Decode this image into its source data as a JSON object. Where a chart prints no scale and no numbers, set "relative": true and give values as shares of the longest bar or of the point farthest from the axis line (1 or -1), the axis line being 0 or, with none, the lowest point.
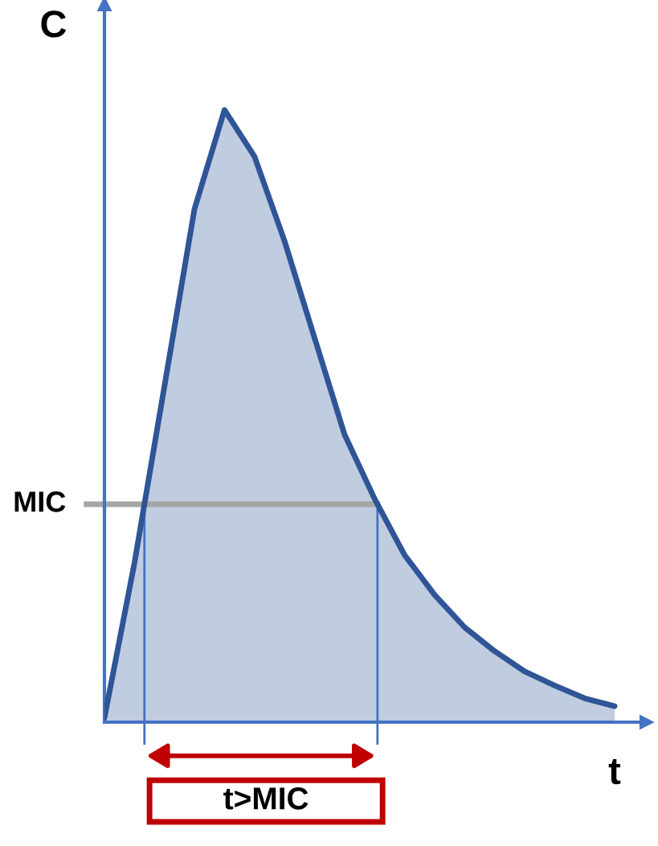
{
  "chart_data": {
    "type": "area",
    "relative": true,
    "xlabel": "t",
    "ylabel": "C",
    "categories": [
      null,
      null,
      null,
      null,
      null,
      null,
      null,
      null,
      null,
      null,
      null,
      null,
      null,
      null,
      null,
      null,
      null,
      null
    ],
    "series": [
      {
        "color": "#2f5597",
        "values": [
          0.007,
          0.26,
          0.549,
          0.838,
          1,
          0.924,
          0.786,
          0.628,
          0.47,
          0.365,
          0.273,
          0.208,
          0.155,
          0.116,
          0.083,
          0.06,
          0.039,
          0.026
        ]
      }
    ],
    "ref_lines": [
      {
        "axis": "y",
        "value": 0.356,
        "label": "MIC",
        "color": "#a6a6a6"
      }
    ],
    "annotations": [
      "t>MIC"
    ]
  }
}
